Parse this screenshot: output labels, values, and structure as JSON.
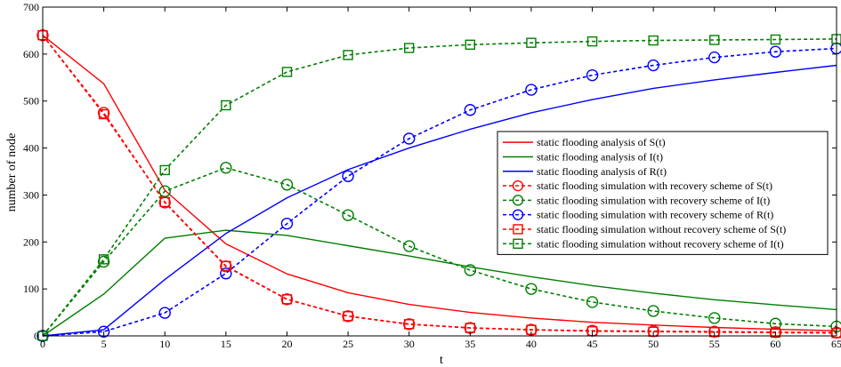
{
  "chart_data": {
    "type": "line",
    "title": "",
    "xlabel": "t",
    "ylabel": "number of node",
    "xlim": [
      0,
      65
    ],
    "ylim": [
      0,
      700
    ],
    "xticks": [
      0,
      5,
      10,
      15,
      20,
      25,
      30,
      35,
      40,
      45,
      50,
      55,
      60,
      65
    ],
    "yticks": [
      0,
      100,
      200,
      300,
      400,
      500,
      600,
      700
    ],
    "grid": false,
    "legend_position": "right",
    "x": [
      0,
      5,
      10,
      15,
      20,
      25,
      30,
      35,
      40,
      45,
      50,
      55,
      60,
      65
    ],
    "series": [
      {
        "name": "static flooding analysis of S(t)",
        "color": "#ff0000",
        "style": "solid",
        "marker": "none",
        "values": [
          640,
          537,
          310,
          196,
          132,
          92,
          67,
          50,
          38,
          29,
          23,
          18,
          14,
          11
        ]
      },
      {
        "name": "static flooding analysis of I(t)",
        "color": "#007f00",
        "style": "solid",
        "marker": "none",
        "values": [
          0,
          89,
          208,
          225,
          214,
          192,
          170,
          147,
          126,
          107,
          91,
          77,
          66,
          56
        ]
      },
      {
        "name": "static flooding analysis of R(t)",
        "color": "#0000ff",
        "style": "solid",
        "marker": "none",
        "values": [
          0,
          13,
          120,
          218,
          294,
          354,
          400,
          440,
          475,
          503,
          527,
          545,
          561,
          576
        ]
      },
      {
        "name": "static flooding simulation with recovery scheme of S(t)",
        "color": "#ff0000",
        "style": "dashed",
        "marker": "circle",
        "values": [
          640,
          475,
          284,
          148,
          78,
          42,
          25,
          17,
          13,
          11,
          10,
          9,
          8,
          7
        ]
      },
      {
        "name": "static flooding simulation with recovery scheme of I(t)",
        "color": "#007f00",
        "style": "dashed",
        "marker": "circle",
        "values": [
          0,
          158,
          308,
          358,
          322,
          257,
          191,
          140,
          100,
          72,
          53,
          38,
          26,
          20
        ]
      },
      {
        "name": "static flooding simulation with recovery scheme of R(t)",
        "color": "#0000ff",
        "style": "dashed",
        "marker": "circle",
        "values": [
          0,
          9,
          49,
          133,
          239,
          340,
          420,
          481,
          524,
          555,
          576,
          593,
          605,
          612
        ]
      },
      {
        "name": "static flooding simulation without recovery scheme of S(t)",
        "color": "#ff0000",
        "style": "dashed",
        "marker": "square",
        "values": [
          640,
          472,
          285,
          149,
          78,
          42,
          25,
          17,
          13,
          10,
          9,
          8,
          7,
          6
        ]
      },
      {
        "name": "static flooding simulation without recovery scheme of I(t)",
        "color": "#007f00",
        "style": "dashed",
        "marker": "square",
        "values": [
          0,
          163,
          353,
          491,
          562,
          598,
          613,
          620,
          624,
          627,
          629,
          630,
          631,
          632
        ]
      }
    ]
  }
}
